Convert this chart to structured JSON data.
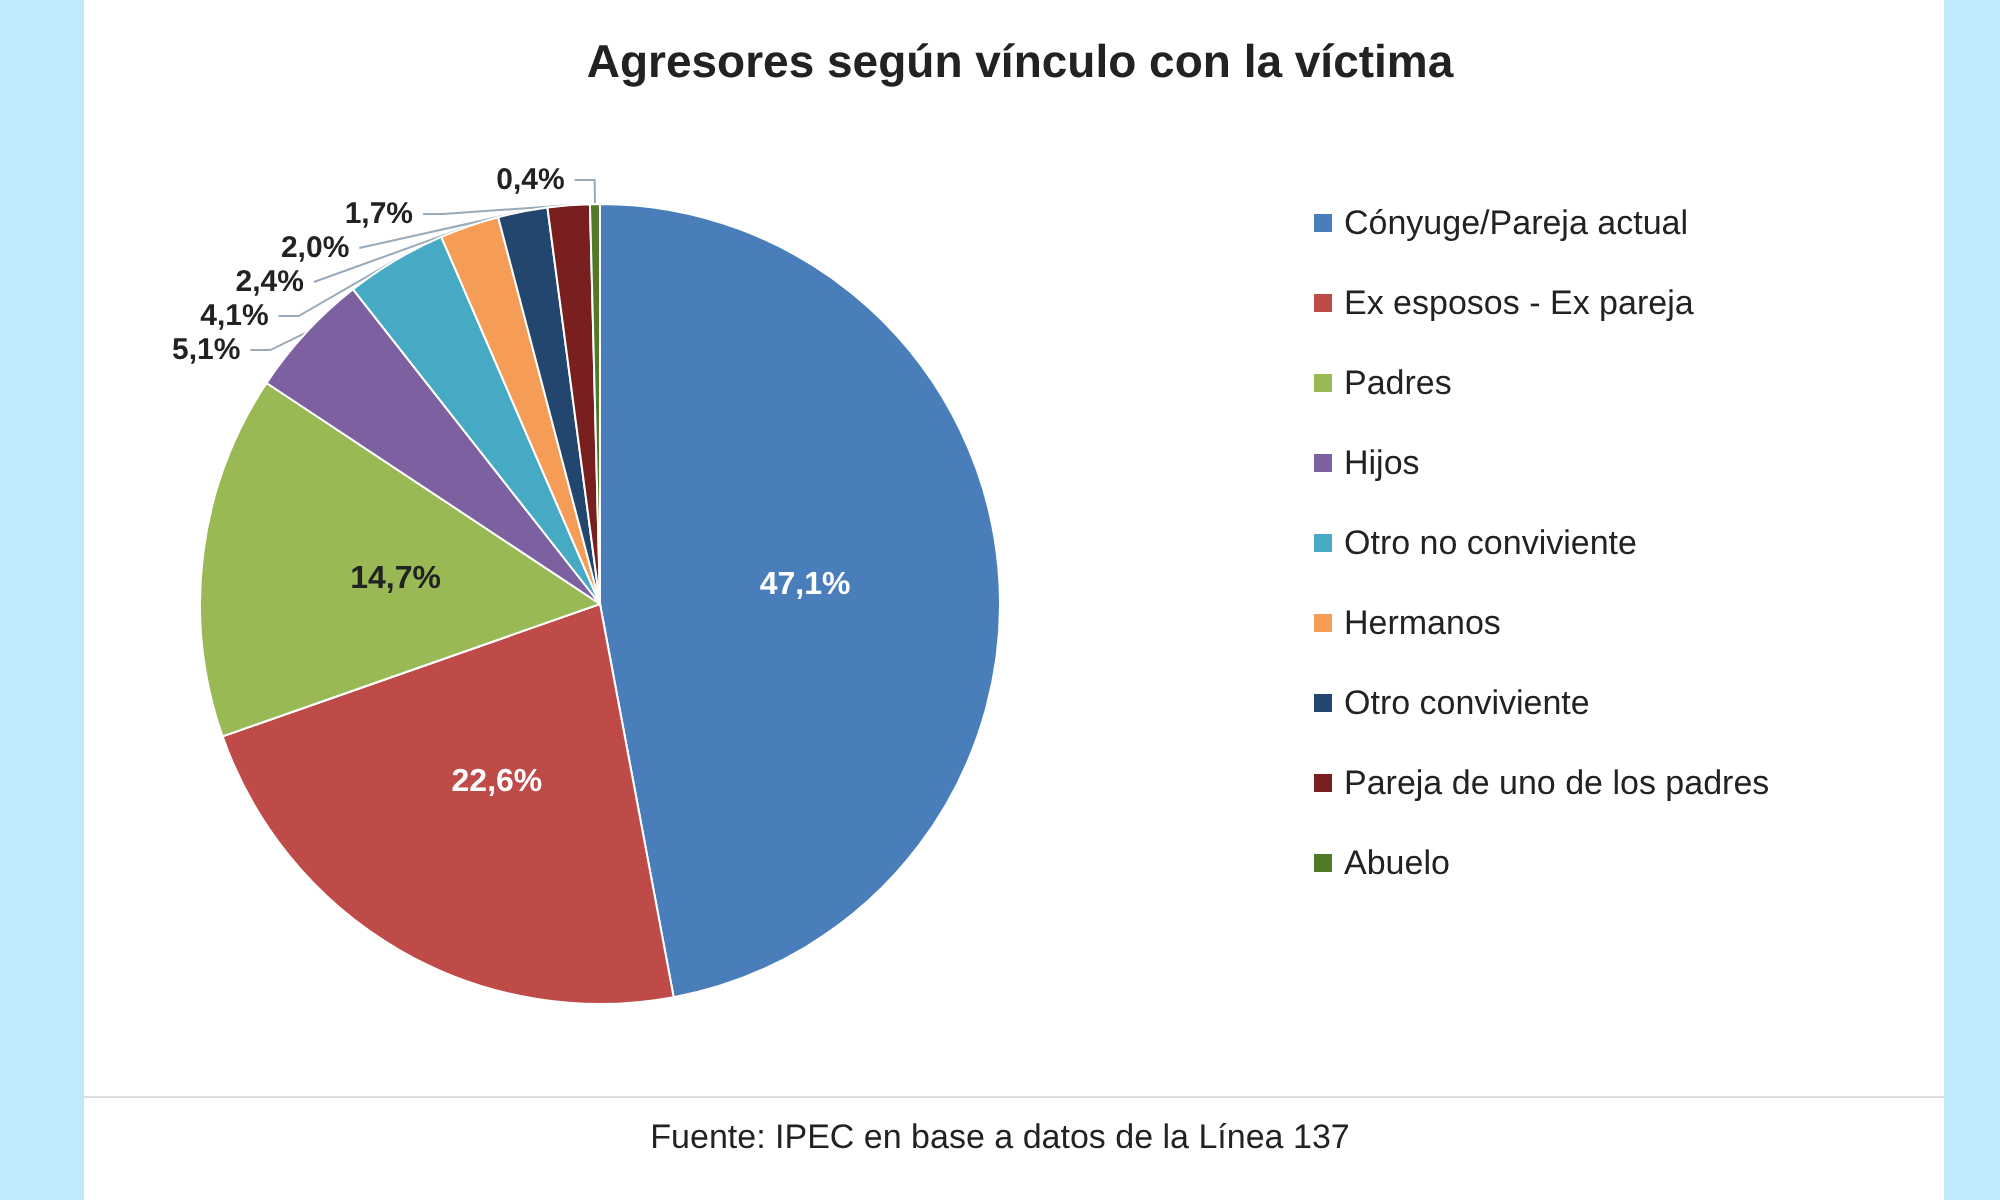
{
  "chart_data": {
    "type": "pie",
    "title": "Agresores según vínculo con la víctima",
    "categories": [
      "Cónyuge/Pareja actual",
      "Ex esposos - Ex pareja",
      "Padres",
      "Hijos",
      "Otro no conviviente",
      "Hermanos",
      "Otro conviviente",
      "Pareja de uno de los padres",
      "Abuelo"
    ],
    "values": [
      47.1,
      22.6,
      14.7,
      5.1,
      4.1,
      2.4,
      2.0,
      1.7,
      0.4
    ],
    "value_labels": [
      "47,1%",
      "22,6%",
      "14,7%",
      "5,1%",
      "4,1%",
      "2,4%",
      "2,0%",
      "1,7%",
      "0,4%"
    ],
    "colors": [
      "#4a7ebb",
      "#be4b48",
      "#98b954",
      "#7d60a0",
      "#46aac5",
      "#f59d56",
      "#23466f",
      "#7a1f1f",
      "#4f7a28"
    ],
    "legend": "right",
    "annotations": [
      "Fuente: IPEC en base a datos de la Línea 137"
    ]
  }
}
